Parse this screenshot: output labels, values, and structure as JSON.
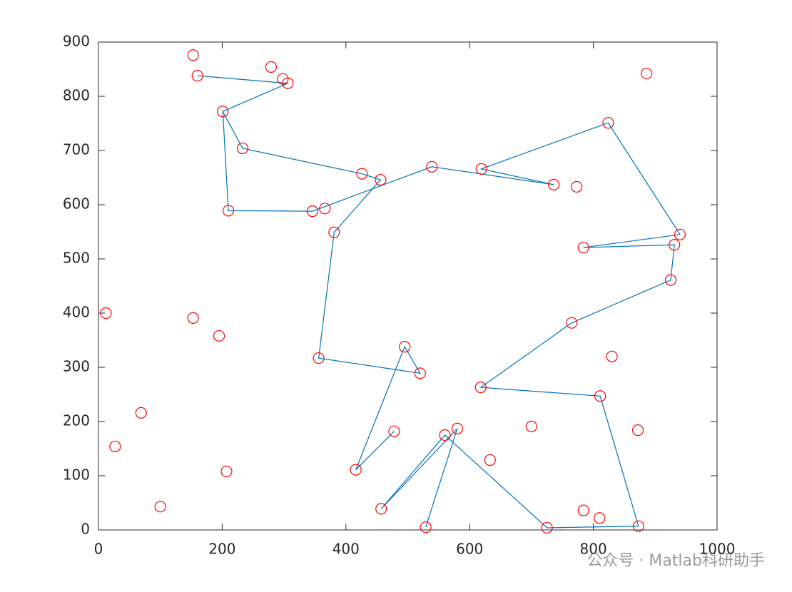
{
  "chart_data": {
    "type": "scatter",
    "points": {
      "color": "#ff0000",
      "x": [
        153,
        160,
        279,
        298,
        306,
        201,
        233,
        886,
        824,
        426,
        456,
        539,
        619,
        736,
        773,
        210,
        346,
        366,
        381,
        940,
        931,
        784,
        925,
        12,
        153,
        195,
        765,
        356,
        495,
        520,
        830,
        618,
        811,
        69,
        478,
        580,
        560,
        700,
        872,
        27,
        633,
        416,
        207,
        457,
        784,
        810,
        100,
        529,
        725,
        873
      ],
      "y": [
        876,
        838,
        854,
        832,
        824,
        772,
        704,
        842,
        751,
        657,
        646,
        670,
        666,
        637,
        633,
        589,
        588,
        593,
        549,
        545,
        526,
        521,
        461,
        400,
        391,
        358,
        382,
        317,
        338,
        289,
        320,
        263,
        247,
        216,
        182,
        187,
        175,
        191,
        184,
        154,
        129,
        111,
        108,
        39,
        36,
        22,
        43,
        5,
        4,
        7
      ]
    },
    "route": {
      "color": "#0072bd",
      "x": [
        160,
        306,
        201,
        210,
        346,
        539,
        736,
        619,
        824,
        940,
        784,
        931,
        925,
        765,
        618,
        811,
        873,
        725,
        560,
        457,
        580,
        529,
        null,
        201,
        233,
        426,
        456,
        381,
        356,
        520,
        495,
        416,
        478
      ],
      "y": [
        838,
        824,
        772,
        589,
        588,
        670,
        637,
        666,
        751,
        545,
        521,
        526,
        461,
        382,
        263,
        247,
        7,
        4,
        175,
        39,
        187,
        5,
        null,
        772,
        704,
        657,
        646,
        549,
        317,
        289,
        338,
        111,
        182
      ]
    },
    "xlim": [
      0,
      1000
    ],
    "xticks": [
      0,
      200,
      400,
      600,
      800,
      1000
    ],
    "ylim": [
      0,
      900
    ],
    "yticks": [
      0,
      100,
      200,
      300,
      400,
      500,
      600,
      700,
      800,
      900
    ],
    "annotation": "公众号 · Matlab科研助手"
  }
}
